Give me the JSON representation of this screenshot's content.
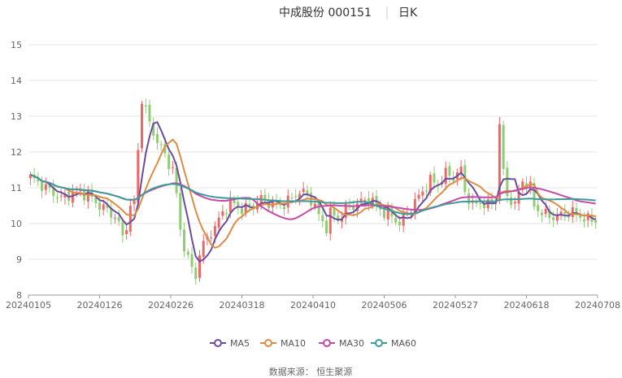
{
  "chart_data": {
    "type": "candlestick",
    "title": "中成股份 000151",
    "subtitle": "日K",
    "source_text": "数据来源：  恒生聚源",
    "ylim": [
      8,
      15
    ],
    "y_ticks": [
      "8",
      "9",
      "10",
      "11",
      "12",
      "13",
      "14",
      "15"
    ],
    "x_labels": [
      "20240105",
      "20240126",
      "20240226",
      "20240318",
      "20240410",
      "20240506",
      "20240527",
      "20240618",
      "20240708"
    ],
    "up_color": "#ee6666",
    "down_color": "#91cc75",
    "grid": true,
    "legend_position": "bottom",
    "series": [
      {
        "name": "MA5",
        "color": "#6c4ba0"
      },
      {
        "name": "MA10",
        "color": "#e08b45"
      },
      {
        "name": "MA30",
        "color": "#c64aa8"
      },
      {
        "name": "MA60",
        "color": "#3f9a9a"
      }
    ],
    "close_path": [
      [
        0,
        11.3
      ],
      [
        4,
        11.0
      ],
      [
        8,
        10.7
      ],
      [
        12,
        10.9
      ],
      [
        15,
        10.8
      ],
      [
        18,
        10.5
      ],
      [
        21,
        10.3
      ],
      [
        23,
        10.0
      ],
      [
        24,
        9.6
      ],
      [
        26,
        10.4
      ],
      [
        27,
        10.6
      ],
      [
        29,
        13.5
      ],
      [
        31,
        12.8
      ],
      [
        33,
        12.3
      ],
      [
        35,
        11.9
      ],
      [
        37,
        11.5
      ],
      [
        38,
        10.8
      ],
      [
        39,
        9.8
      ],
      [
        41,
        9.0
      ],
      [
        43,
        8.5
      ],
      [
        44,
        9.2
      ],
      [
        46,
        9.6
      ],
      [
        48,
        9.9
      ],
      [
        50,
        10.3
      ],
      [
        52,
        10.6
      ],
      [
        55,
        10.4
      ],
      [
        58,
        10.5
      ],
      [
        60,
        10.7
      ],
      [
        62,
        10.6
      ],
      [
        65,
        10.5
      ],
      [
        68,
        10.7
      ],
      [
        70,
        10.9
      ],
      [
        72,
        10.8
      ],
      [
        74,
        10.5
      ],
      [
        75,
        10.2
      ],
      [
        77,
        9.9
      ],
      [
        78,
        10.3
      ],
      [
        80,
        10.1
      ],
      [
        82,
        10.4
      ],
      [
        84,
        10.5
      ],
      [
        86,
        10.6
      ],
      [
        88,
        10.7
      ],
      [
        90,
        10.5
      ],
      [
        92,
        10.3
      ],
      [
        94,
        10.2
      ],
      [
        96,
        10.0
      ],
      [
        98,
        10.3
      ],
      [
        100,
        10.6
      ],
      [
        102,
        10.9
      ],
      [
        104,
        11.2
      ],
      [
        106,
        11.1
      ],
      [
        108,
        11.4
      ],
      [
        110,
        11.3
      ],
      [
        112,
        11.5
      ],
      [
        113,
        10.9
      ],
      [
        115,
        10.5
      ],
      [
        117,
        10.6
      ],
      [
        119,
        10.5
      ],
      [
        121,
        10.7
      ],
      [
        122,
        12.8
      ],
      [
        123,
        11.4
      ],
      [
        124,
        10.8
      ],
      [
        126,
        10.5
      ],
      [
        128,
        11.2
      ],
      [
        130,
        11.0
      ],
      [
        131,
        10.5
      ],
      [
        133,
        10.3
      ],
      [
        135,
        10.2
      ],
      [
        137,
        10.2
      ],
      [
        139,
        10.3
      ],
      [
        141,
        10.3
      ],
      [
        143,
        10.2
      ],
      [
        145,
        10.1
      ],
      [
        147,
        10.1
      ]
    ]
  }
}
